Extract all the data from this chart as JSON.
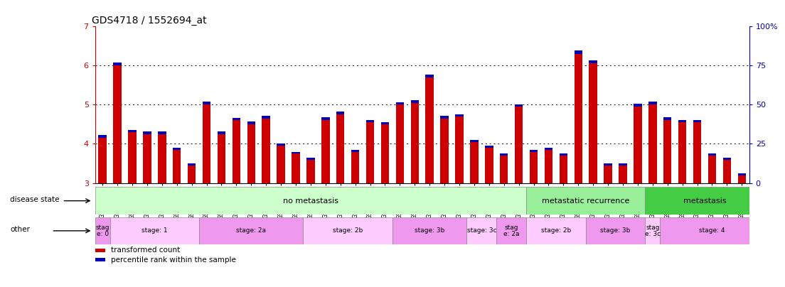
{
  "title": "GDS4718 / 1552694_at",
  "samples": [
    "GSM549121",
    "GSM549102",
    "GSM549104",
    "GSM549108",
    "GSM549119",
    "GSM549133",
    "GSM549139",
    "GSM549099",
    "GSM549109",
    "GSM549110",
    "GSM549114",
    "GSM549122",
    "GSM549134",
    "GSM549136",
    "GSM549140",
    "GSM549111",
    "GSM549113",
    "GSM549132",
    "GSM549137",
    "GSM549142",
    "GSM549100",
    "GSM549107",
    "GSM549115",
    "GSM549116",
    "GSM549120",
    "GSM549131",
    "GSM549118",
    "GSM549129",
    "GSM549123",
    "GSM549124",
    "GSM549126",
    "GSM549128",
    "GSM549103",
    "GSM549117",
    "GSM549138",
    "GSM549141",
    "GSM549130",
    "GSM549101",
    "GSM549105",
    "GSM549106",
    "GSM549112",
    "GSM549125",
    "GSM549127",
    "GSM549135"
  ],
  "red_values": [
    4.15,
    6.0,
    4.3,
    4.25,
    4.25,
    3.85,
    3.45,
    5.0,
    4.25,
    4.6,
    4.5,
    4.65,
    3.95,
    3.75,
    3.6,
    4.6,
    4.75,
    3.8,
    4.55,
    4.5,
    5.0,
    5.05,
    5.7,
    4.65,
    4.7,
    4.05,
    3.9,
    3.7,
    4.95,
    3.8,
    3.85,
    3.7,
    6.3,
    6.05,
    3.45,
    3.45,
    4.95,
    5.0,
    4.6,
    4.55,
    4.55,
    3.7,
    3.6,
    3.2
  ],
  "blue_values": [
    0.07,
    0.08,
    0.06,
    0.07,
    0.07,
    0.05,
    0.05,
    0.07,
    0.06,
    0.06,
    0.07,
    0.07,
    0.05,
    0.05,
    0.05,
    0.07,
    0.07,
    0.05,
    0.06,
    0.06,
    0.06,
    0.07,
    0.07,
    0.07,
    0.06,
    0.05,
    0.05,
    0.05,
    0.06,
    0.05,
    0.05,
    0.05,
    0.08,
    0.08,
    0.05,
    0.05,
    0.08,
    0.07,
    0.07,
    0.06,
    0.06,
    0.05,
    0.05,
    0.05
  ],
  "ylim_left": [
    3.0,
    7.0
  ],
  "yticks_left": [
    3,
    4,
    5,
    6,
    7
  ],
  "ytick_labels_right": [
    "0",
    "25",
    "50",
    "75",
    "100%"
  ],
  "bar_color_red": "#cc0000",
  "bar_color_blue": "#0000bb",
  "bar_width": 0.55,
  "disease_state_groups": [
    {
      "label": "no metastasis",
      "start": 0,
      "end": 28,
      "color": "#ccffcc"
    },
    {
      "label": "metastatic recurrence",
      "start": 29,
      "end": 36,
      "color": "#99ee99"
    },
    {
      "label": "metastasis",
      "start": 37,
      "end": 44,
      "color": "#44cc44"
    }
  ],
  "stage_groups": [
    {
      "label": "stag\ne: 0",
      "start": 0,
      "end": 0,
      "color": "#ee99ee"
    },
    {
      "label": "stage: 1",
      "start": 1,
      "end": 6,
      "color": "#ffccff"
    },
    {
      "label": "stage: 2a",
      "start": 7,
      "end": 13,
      "color": "#ee99ee"
    },
    {
      "label": "stage: 2b",
      "start": 14,
      "end": 19,
      "color": "#ffccff"
    },
    {
      "label": "stage: 3b",
      "start": 20,
      "end": 24,
      "color": "#ee99ee"
    },
    {
      "label": "stage: 3c",
      "start": 25,
      "end": 26,
      "color": "#ffccff"
    },
    {
      "label": "stag\ne: 2a",
      "start": 27,
      "end": 28,
      "color": "#ee99ee"
    },
    {
      "label": "stage: 2b",
      "start": 29,
      "end": 32,
      "color": "#ffccff"
    },
    {
      "label": "stage: 3b",
      "start": 33,
      "end": 36,
      "color": "#ee99ee"
    },
    {
      "label": "stag\ne: 3c",
      "start": 37,
      "end": 37,
      "color": "#ffccff"
    },
    {
      "label": "stage: 4",
      "start": 38,
      "end": 44,
      "color": "#ee99ee"
    }
  ],
  "legend_items": [
    {
      "label": "transformed count",
      "color": "#cc0000"
    },
    {
      "label": "percentile rank within the sample",
      "color": "#0000bb"
    }
  ],
  "bg_color": "#ffffff",
  "label_disease": "disease state",
  "label_other": "other"
}
